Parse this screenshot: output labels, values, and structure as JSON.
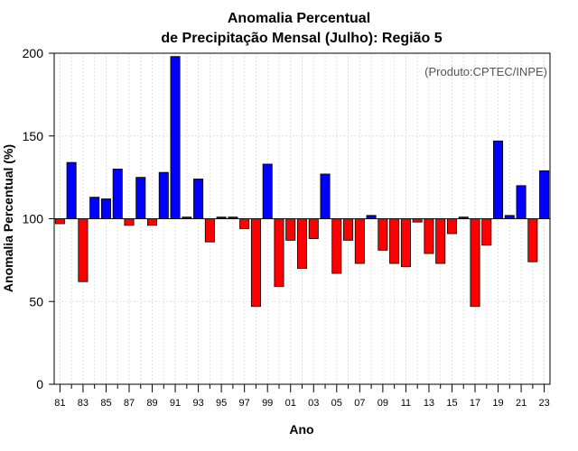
{
  "chart_data": {
    "type": "bar",
    "title": "Anomalia Percentual",
    "subtitle": "de Precipitação Mensal (Julho): Região 5",
    "xlabel": "Ano",
    "ylabel": "Anomalia Percentual (%)",
    "credit": "(Produto:CPTEC/INPE)",
    "ylim": [
      0,
      200
    ],
    "yticks": [
      0,
      50,
      100,
      150,
      200
    ],
    "baseline": 100,
    "grid": true,
    "colors": {
      "above": "#0000ff",
      "below": "#ff0000",
      "edge": "#000000"
    },
    "categories": [
      "81",
      "82",
      "83",
      "84",
      "85",
      "86",
      "87",
      "88",
      "89",
      "90",
      "91",
      "92",
      "93",
      "94",
      "95",
      "96",
      "97",
      "98",
      "99",
      "00",
      "01",
      "02",
      "03",
      "04",
      "05",
      "06",
      "07",
      "08",
      "09",
      "10",
      "11",
      "12",
      "13",
      "14",
      "15",
      "16",
      "17",
      "18",
      "19",
      "20",
      "21",
      "22",
      "23"
    ],
    "tick_labels": [
      "81",
      "83",
      "85",
      "87",
      "89",
      "91",
      "93",
      "95",
      "97",
      "99",
      "01",
      "03",
      "05",
      "07",
      "09",
      "11",
      "13",
      "15",
      "17",
      "19",
      "21",
      "23"
    ],
    "values": [
      97,
      134,
      62,
      113,
      112,
      130,
      96,
      125,
      96,
      128,
      198,
      101,
      124,
      86,
      101,
      101,
      94,
      47,
      133,
      59,
      87,
      70,
      88,
      127,
      67,
      87,
      73,
      102,
      81,
      73,
      71,
      98,
      79,
      73,
      91,
      101,
      47,
      84,
      147,
      102,
      120,
      74,
      129
    ]
  }
}
